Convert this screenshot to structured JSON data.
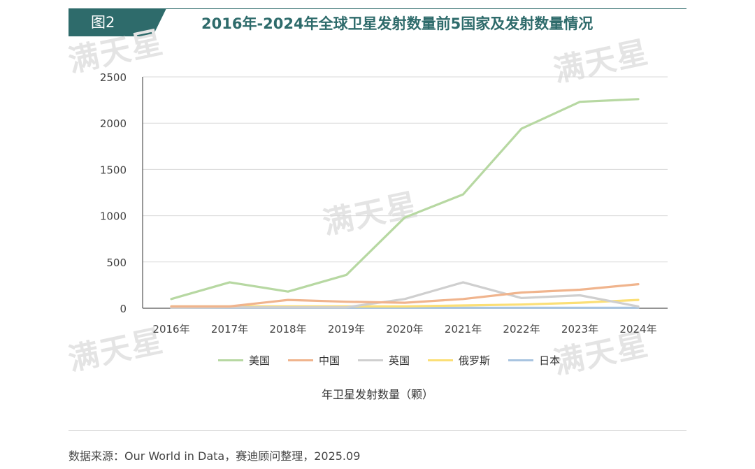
{
  "header": {
    "tag": "图2",
    "title": "2016年-2024年全球卫星发射数量前5国家及发射数量情况"
  },
  "watermark": {
    "text": "满天星"
  },
  "footer": {
    "source": "数据来源：Our World in Data，赛迪顾问整理，2025.09"
  },
  "chart_data": {
    "type": "line",
    "title": "2016年-2024年全球卫星发射数量前5国家及发射数量情况",
    "xlabel": "年卫星发射数量（颗）",
    "ylabel": "",
    "categories": [
      "2016年",
      "2017年",
      "2018年",
      "2019年",
      "2020年",
      "2021年",
      "2022年",
      "2023年",
      "2024年"
    ],
    "ylim": [
      0,
      2500
    ],
    "yticks": [
      0,
      500,
      1000,
      1500,
      2000,
      2500
    ],
    "grid": true,
    "legend_position": "bottom",
    "series": [
      {
        "name": "美国",
        "color": "#b7d8a2",
        "values": [
          100,
          280,
          180,
          360,
          980,
          1230,
          1940,
          2230,
          2260
        ]
      },
      {
        "name": "中国",
        "color": "#f0b48d",
        "values": [
          20,
          20,
          90,
          70,
          60,
          100,
          170,
          200,
          260
        ]
      },
      {
        "name": "英国",
        "color": "#cfcfcf",
        "values": [
          5,
          10,
          10,
          10,
          100,
          280,
          110,
          140,
          20
        ]
      },
      {
        "name": "俄罗斯",
        "color": "#fbdf76",
        "values": [
          20,
          20,
          20,
          20,
          20,
          30,
          40,
          60,
          90
        ]
      },
      {
        "name": "日本",
        "color": "#a8c4e0",
        "values": [
          5,
          5,
          5,
          5,
          5,
          5,
          5,
          5,
          5
        ]
      }
    ]
  }
}
